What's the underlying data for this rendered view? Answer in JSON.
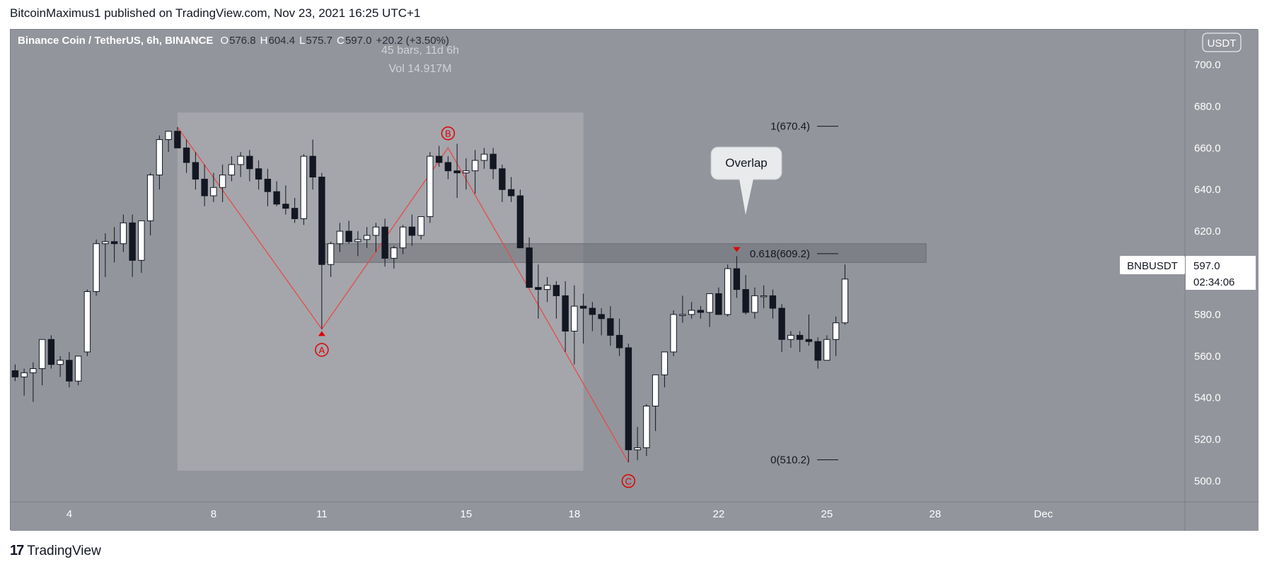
{
  "caption": "BitcoinMaximus1 published on TradingView.com, Nov 23, 2021 16:25 UTC+1",
  "brand": {
    "logo": "17",
    "name": "TradingView"
  },
  "header": {
    "symbol": "Binance Coin / TetherUS, 6h, BINANCE",
    "o_label": "O",
    "o": "576.8",
    "h_label": "H",
    "h": "604.4",
    "l_label": "L",
    "l": "575.7",
    "c_label": "C",
    "c": "597.0",
    "change": "+20.2 (+3.50%)"
  },
  "currency_badge": "USDT",
  "range_stats": {
    "bars": "45 bars, 11d 6h",
    "vol": "Vol 14.917M"
  },
  "last_price": {
    "ticker": "BNBUSDT",
    "price": "597.0",
    "countdown": "02:34:06"
  },
  "overlap_label": "Overlap",
  "colors": {
    "up": "#ffffff",
    "down": "#131722",
    "pattern": "#e84a4a",
    "marker": "#e00000",
    "bg": "#93959c"
  },
  "chart_data": {
    "type": "candlestick",
    "ylim": [
      490,
      710
    ],
    "y_ticks": [
      500,
      520,
      540,
      560,
      580,
      600,
      620,
      640,
      660,
      680,
      700
    ],
    "y_tick_labels": [
      "500.0",
      "520.0",
      "540.0",
      "560.0",
      "580.0",
      "600.0",
      "620.0",
      "640.0",
      "660.0",
      "680.0",
      "700.0"
    ],
    "x_ticks": [
      {
        "label": "4",
        "i": 6
      },
      {
        "label": "8",
        "i": 22
      },
      {
        "label": "11",
        "i": 34
      },
      {
        "label": "15",
        "i": 50
      },
      {
        "label": "18",
        "i": 62
      },
      {
        "label": "22",
        "i": 78
      },
      {
        "label": "25",
        "i": 90
      },
      {
        "label": "28",
        "i": 102
      },
      {
        "label": "Dec",
        "i": 114
      }
    ],
    "candles": [
      [
        553,
        556,
        548,
        550
      ],
      [
        550,
        554,
        541,
        552
      ],
      [
        552,
        557,
        538,
        554
      ],
      [
        554,
        568,
        546,
        568
      ],
      [
        568,
        570,
        554,
        556
      ],
      [
        556,
        560,
        550,
        558
      ],
      [
        558,
        562,
        545,
        548
      ],
      [
        548,
        560,
        546,
        560
      ],
      [
        562,
        592,
        560,
        591
      ],
      [
        591,
        616,
        589,
        614
      ],
      [
        614,
        619,
        598,
        615
      ],
      [
        615,
        622,
        605,
        614
      ],
      [
        614,
        628,
        610,
        624
      ],
      [
        624,
        628,
        598,
        606
      ],
      [
        606,
        624,
        600,
        625
      ],
      [
        625,
        648,
        618,
        647
      ],
      [
        647,
        666,
        640,
        664
      ],
      [
        664,
        668,
        658,
        668
      ],
      [
        668,
        670,
        660,
        660
      ],
      [
        660,
        664,
        648,
        653
      ],
      [
        653,
        658,
        640,
        645
      ],
      [
        645,
        652,
        632,
        637
      ],
      [
        637,
        648,
        634,
        641
      ],
      [
        641,
        652,
        634,
        647
      ],
      [
        647,
        656,
        644,
        652
      ],
      [
        652,
        658,
        646,
        656
      ],
      [
        656,
        659,
        644,
        650
      ],
      [
        650,
        654,
        640,
        645
      ],
      [
        645,
        650,
        632,
        639
      ],
      [
        639,
        644,
        632,
        633
      ],
      [
        633,
        642,
        628,
        631
      ],
      [
        631,
        636,
        624,
        626
      ],
      [
        626,
        657,
        623,
        656
      ],
      [
        656,
        664,
        640,
        646
      ],
      [
        646,
        648,
        573,
        604
      ],
      [
        604,
        615,
        598,
        614
      ],
      [
        614,
        624,
        610,
        620
      ],
      [
        620,
        625,
        614,
        615
      ],
      [
        615,
        620,
        608,
        616
      ],
      [
        616,
        622,
        612,
        618
      ],
      [
        618,
        624,
        610,
        622
      ],
      [
        622,
        626,
        603,
        607
      ],
      [
        607,
        613,
        602,
        612
      ],
      [
        612,
        623,
        609,
        622
      ],
      [
        622,
        628,
        613,
        618
      ],
      [
        618,
        627,
        616,
        627
      ],
      [
        627,
        658,
        624,
        656
      ],
      [
        656,
        661,
        651,
        653
      ],
      [
        653,
        656,
        645,
        649
      ],
      [
        649,
        662,
        636,
        648
      ],
      [
        648,
        655,
        640,
        649
      ],
      [
        649,
        659,
        638,
        654
      ],
      [
        654,
        660,
        650,
        657
      ],
      [
        657,
        660,
        645,
        650
      ],
      [
        650,
        652,
        634,
        640
      ],
      [
        640,
        646,
        634,
        637
      ],
      [
        637,
        640,
        612,
        612
      ],
      [
        612,
        617,
        595,
        593
      ],
      [
        593,
        604,
        578,
        592
      ],
      [
        592,
        598,
        586,
        594
      ],
      [
        594,
        596,
        578,
        589
      ],
      [
        589,
        596,
        562,
        572
      ],
      [
        572,
        594,
        556,
        584
      ],
      [
        584,
        590,
        566,
        583
      ],
      [
        583,
        586,
        572,
        580
      ],
      [
        580,
        583,
        570,
        578
      ],
      [
        578,
        584,
        565,
        570
      ],
      [
        570,
        578,
        560,
        564
      ],
      [
        564,
        566,
        509,
        515
      ],
      [
        515,
        526,
        510,
        516
      ],
      [
        516,
        537,
        512,
        536
      ],
      [
        536,
        551,
        524,
        551
      ],
      [
        551,
        561,
        545,
        562
      ],
      [
        562,
        582,
        560,
        580
      ],
      [
        580,
        589,
        576,
        580
      ],
      [
        580,
        586,
        578,
        582
      ],
      [
        582,
        584,
        578,
        581
      ],
      [
        581,
        590,
        574,
        590
      ],
      [
        590,
        593,
        581,
        580
      ],
      [
        580,
        604,
        579,
        602
      ],
      [
        602,
        608,
        588,
        592
      ],
      [
        592,
        599,
        580,
        581
      ],
      [
        581,
        593,
        578,
        589
      ],
      [
        589,
        594,
        583,
        589
      ],
      [
        589,
        592,
        578,
        583
      ],
      [
        583,
        585,
        562,
        568
      ],
      [
        568,
        572,
        564,
        570
      ],
      [
        570,
        572,
        562,
        568
      ],
      [
        568,
        580,
        565,
        567
      ],
      [
        567,
        569,
        554,
        558
      ],
      [
        558,
        570,
        558,
        568
      ],
      [
        568,
        579,
        560,
        576
      ],
      [
        576,
        604,
        575,
        597
      ]
    ],
    "range_box": {
      "start_i": 18,
      "end_i": 63,
      "high": 677,
      "low": 505
    },
    "pattern": {
      "points": [
        {
          "i": 18,
          "v": 670
        },
        {
          "i": 34,
          "v": 573
        },
        {
          "i": 48,
          "v": 660
        },
        {
          "i": 68,
          "v": 509
        }
      ],
      "labels": [
        {
          "text": "A",
          "i": 34,
          "v": 563
        },
        {
          "text": "B",
          "i": 48,
          "v": 667
        },
        {
          "text": "C",
          "i": 68,
          "v": 500
        }
      ],
      "up_marker": {
        "i": 34,
        "v": 571
      },
      "down_marker": {
        "i": 80,
        "v": 611
      }
    },
    "fib": [
      {
        "label": "1(670.4)",
        "value": 670.4
      },
      {
        "label": "0.618(609.2)",
        "value": 609.2
      },
      {
        "label": "0(510.2)",
        "value": 510.2
      }
    ],
    "zone": {
      "start_i": 34,
      "end_i": 101,
      "high": 614,
      "low": 605
    }
  }
}
